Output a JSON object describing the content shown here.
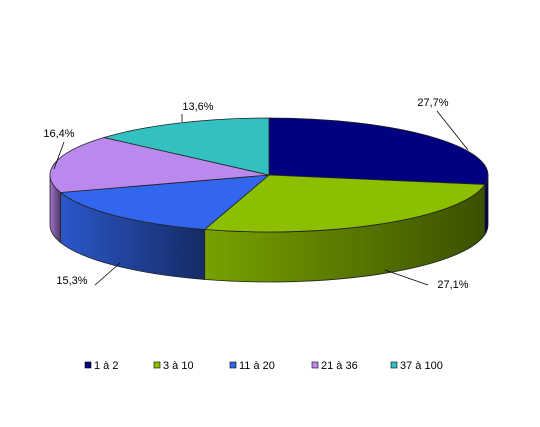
{
  "chart_data": {
    "type": "pie",
    "style": "3d",
    "title": "",
    "categories": [
      "1 à 2",
      "3 à 10",
      "11 à 20",
      "21 à 36",
      "37 à 100"
    ],
    "values": [
      27.7,
      27.1,
      15.3,
      16.4,
      13.6
    ],
    "value_labels": [
      "27,7%",
      "27,1%",
      "15,3%",
      "16,4%",
      "13,6%"
    ],
    "colors": [
      "#000080",
      "#8cbf00",
      "#3366ee",
      "#bb88ee",
      "#33c0c0"
    ],
    "legend_position": "bottom"
  }
}
